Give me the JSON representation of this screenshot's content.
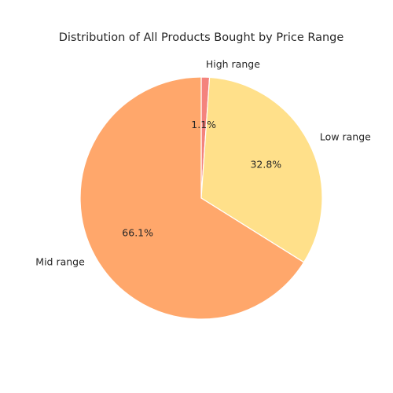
{
  "chart_data": {
    "type": "pie",
    "title": "Distribution of All Products Bought by Price Range",
    "start_angle_deg": 90,
    "direction": "clockwise",
    "slices": [
      {
        "label": "High range",
        "value": 1.1,
        "pct_label": "1.1%",
        "color": "#f4837d"
      },
      {
        "label": "Low range",
        "value": 32.8,
        "pct_label": "32.8%",
        "color": "#ffe08a"
      },
      {
        "label": "Mid range",
        "value": 66.1,
        "pct_label": "66.1%",
        "color": "#ffa76b"
      }
    ],
    "slice_edge_color": "#ffffff"
  }
}
